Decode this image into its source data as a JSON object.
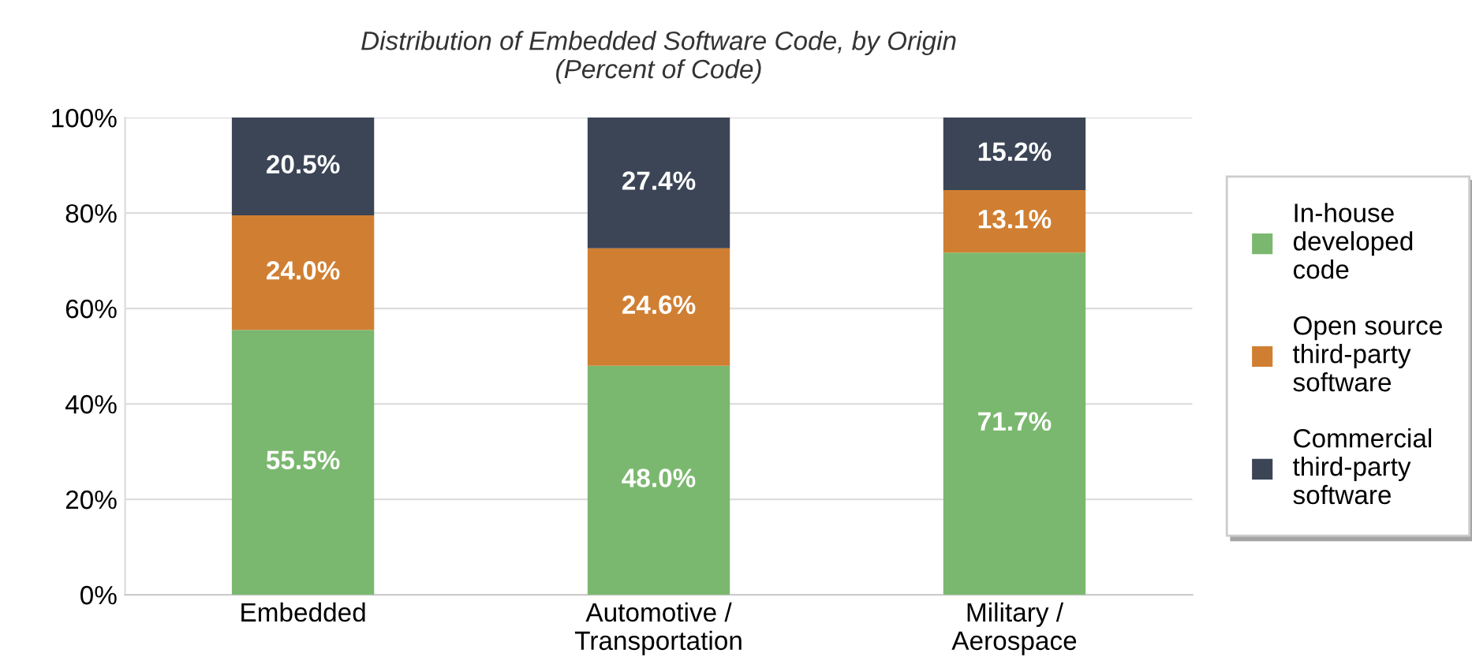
{
  "chart_data": {
    "type": "bar",
    "stacked": true,
    "title": "Distribution of Embedded Software Code, by Origin\n(Percent of Code)",
    "categories": [
      "Embedded",
      "Automotive / Transportation",
      "Military / Aerospace"
    ],
    "series": [
      {
        "name": "In-house developed code",
        "color": "#7bb86f",
        "values": [
          55.5,
          48.0,
          71.7
        ],
        "value_labels": [
          "55.5%",
          "48.0%",
          "71.7%"
        ]
      },
      {
        "name": "Open source third-party software",
        "color": "#d07f32",
        "values": [
          24.0,
          24.6,
          13.1
        ],
        "value_labels": [
          "24.0%",
          "24.6%",
          "13.1%"
        ]
      },
      {
        "name": "Commercial third-party software",
        "color": "#3b4556",
        "values": [
          20.5,
          27.4,
          15.2
        ],
        "value_labels": [
          "20.5%",
          "27.4%",
          "15.2%"
        ]
      }
    ],
    "ylim": [
      0,
      100
    ],
    "yticks": [
      {
        "value": 0,
        "label": "0%"
      },
      {
        "value": 20,
        "label": "20%"
      },
      {
        "value": 40,
        "label": "40%"
      },
      {
        "value": 60,
        "label": "60%"
      },
      {
        "value": 80,
        "label": "80%"
      },
      {
        "value": 100,
        "label": "100%"
      }
    ],
    "grid": "y",
    "legend": "right"
  }
}
